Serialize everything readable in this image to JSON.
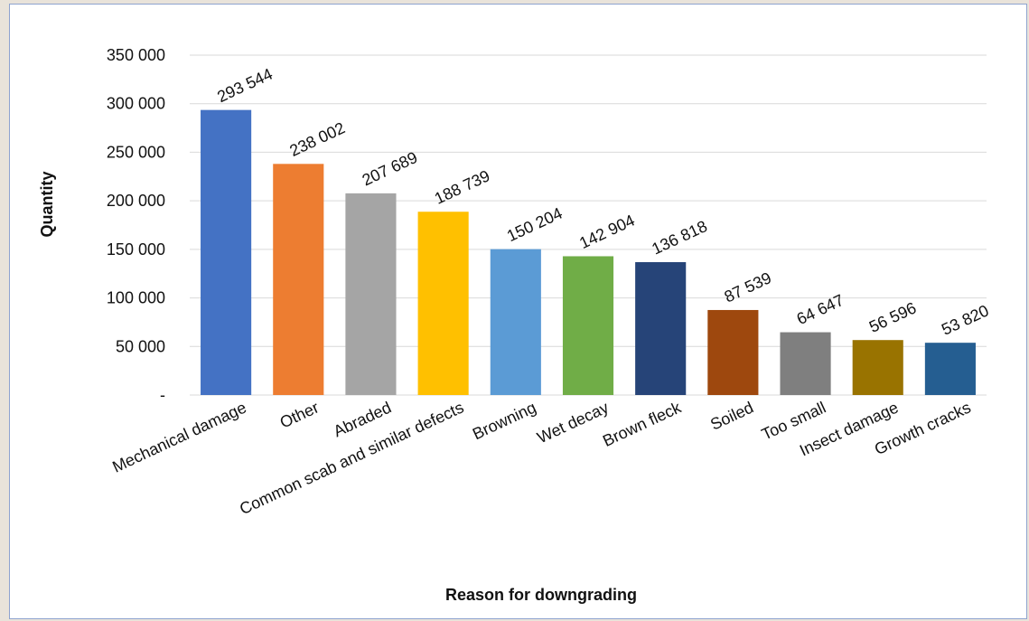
{
  "chart_data": {
    "type": "bar",
    "title": "",
    "xlabel": "Reason for downgrading",
    "ylabel": "Quantity",
    "ylim": [
      0,
      350000
    ],
    "yticks": [
      0,
      50000,
      100000,
      150000,
      200000,
      250000,
      300000,
      350000
    ],
    "ytick_labels": [
      "-",
      "50 000",
      "100 000",
      "150 000",
      "200 000",
      "250 000",
      "300 000",
      "350 000"
    ],
    "grid": true,
    "categories": [
      "Mechanical damage",
      "Other",
      "Abraded",
      "Common scab and similar defects",
      "Browning",
      "Wet decay",
      "Brown fleck",
      "Soiled",
      "Too small",
      "Insect damage",
      "Growth cracks"
    ],
    "values": [
      293544,
      238002,
      207689,
      188739,
      150204,
      142904,
      136818,
      87539,
      64647,
      56596,
      53820
    ],
    "data_labels": [
      "293 544",
      "238 002",
      "207 689",
      "188 739",
      "150 204",
      "142 904",
      "136 818",
      "87 539",
      "64 647",
      "56 596",
      "53 820"
    ],
    "colors": [
      "#4472c4",
      "#ed7d31",
      "#a5a5a5",
      "#ffc000",
      "#5b9bd5",
      "#70ad47",
      "#264478",
      "#9e480e",
      "#7f7f7f",
      "#997300",
      "#255e91"
    ]
  }
}
